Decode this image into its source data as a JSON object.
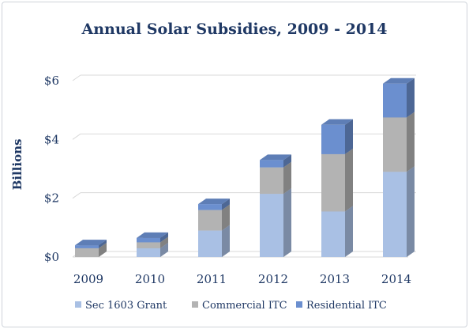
{
  "chart_data": {
    "type": "bar",
    "stacked": true,
    "three_d": true,
    "title": "Annual Solar Subsidies, 2009 - 2014",
    "xlabel": "",
    "ylabel": "Billions",
    "categories": [
      "2009",
      "2010",
      "2011",
      "2012",
      "2013",
      "2014"
    ],
    "y_ticks": [
      "$0",
      "$2",
      "$4",
      "$6"
    ],
    "ylim": [
      0,
      6
    ],
    "grid": true,
    "legend_position": "bottom",
    "series": [
      {
        "name": "Sec 1603 Grant",
        "values": [
          0.0,
          0.3,
          0.9,
          2.15,
          1.55,
          2.9
        ],
        "color": "#a9c0e4"
      },
      {
        "name": "Commercial ITC",
        "values": [
          0.3,
          0.2,
          0.7,
          0.9,
          1.95,
          1.85
        ],
        "color": "#b3b3b3"
      },
      {
        "name": "Residential ITC",
        "values": [
          0.1,
          0.15,
          0.2,
          0.25,
          1.0,
          1.15
        ],
        "color": "#6b8fcf"
      }
    ]
  }
}
